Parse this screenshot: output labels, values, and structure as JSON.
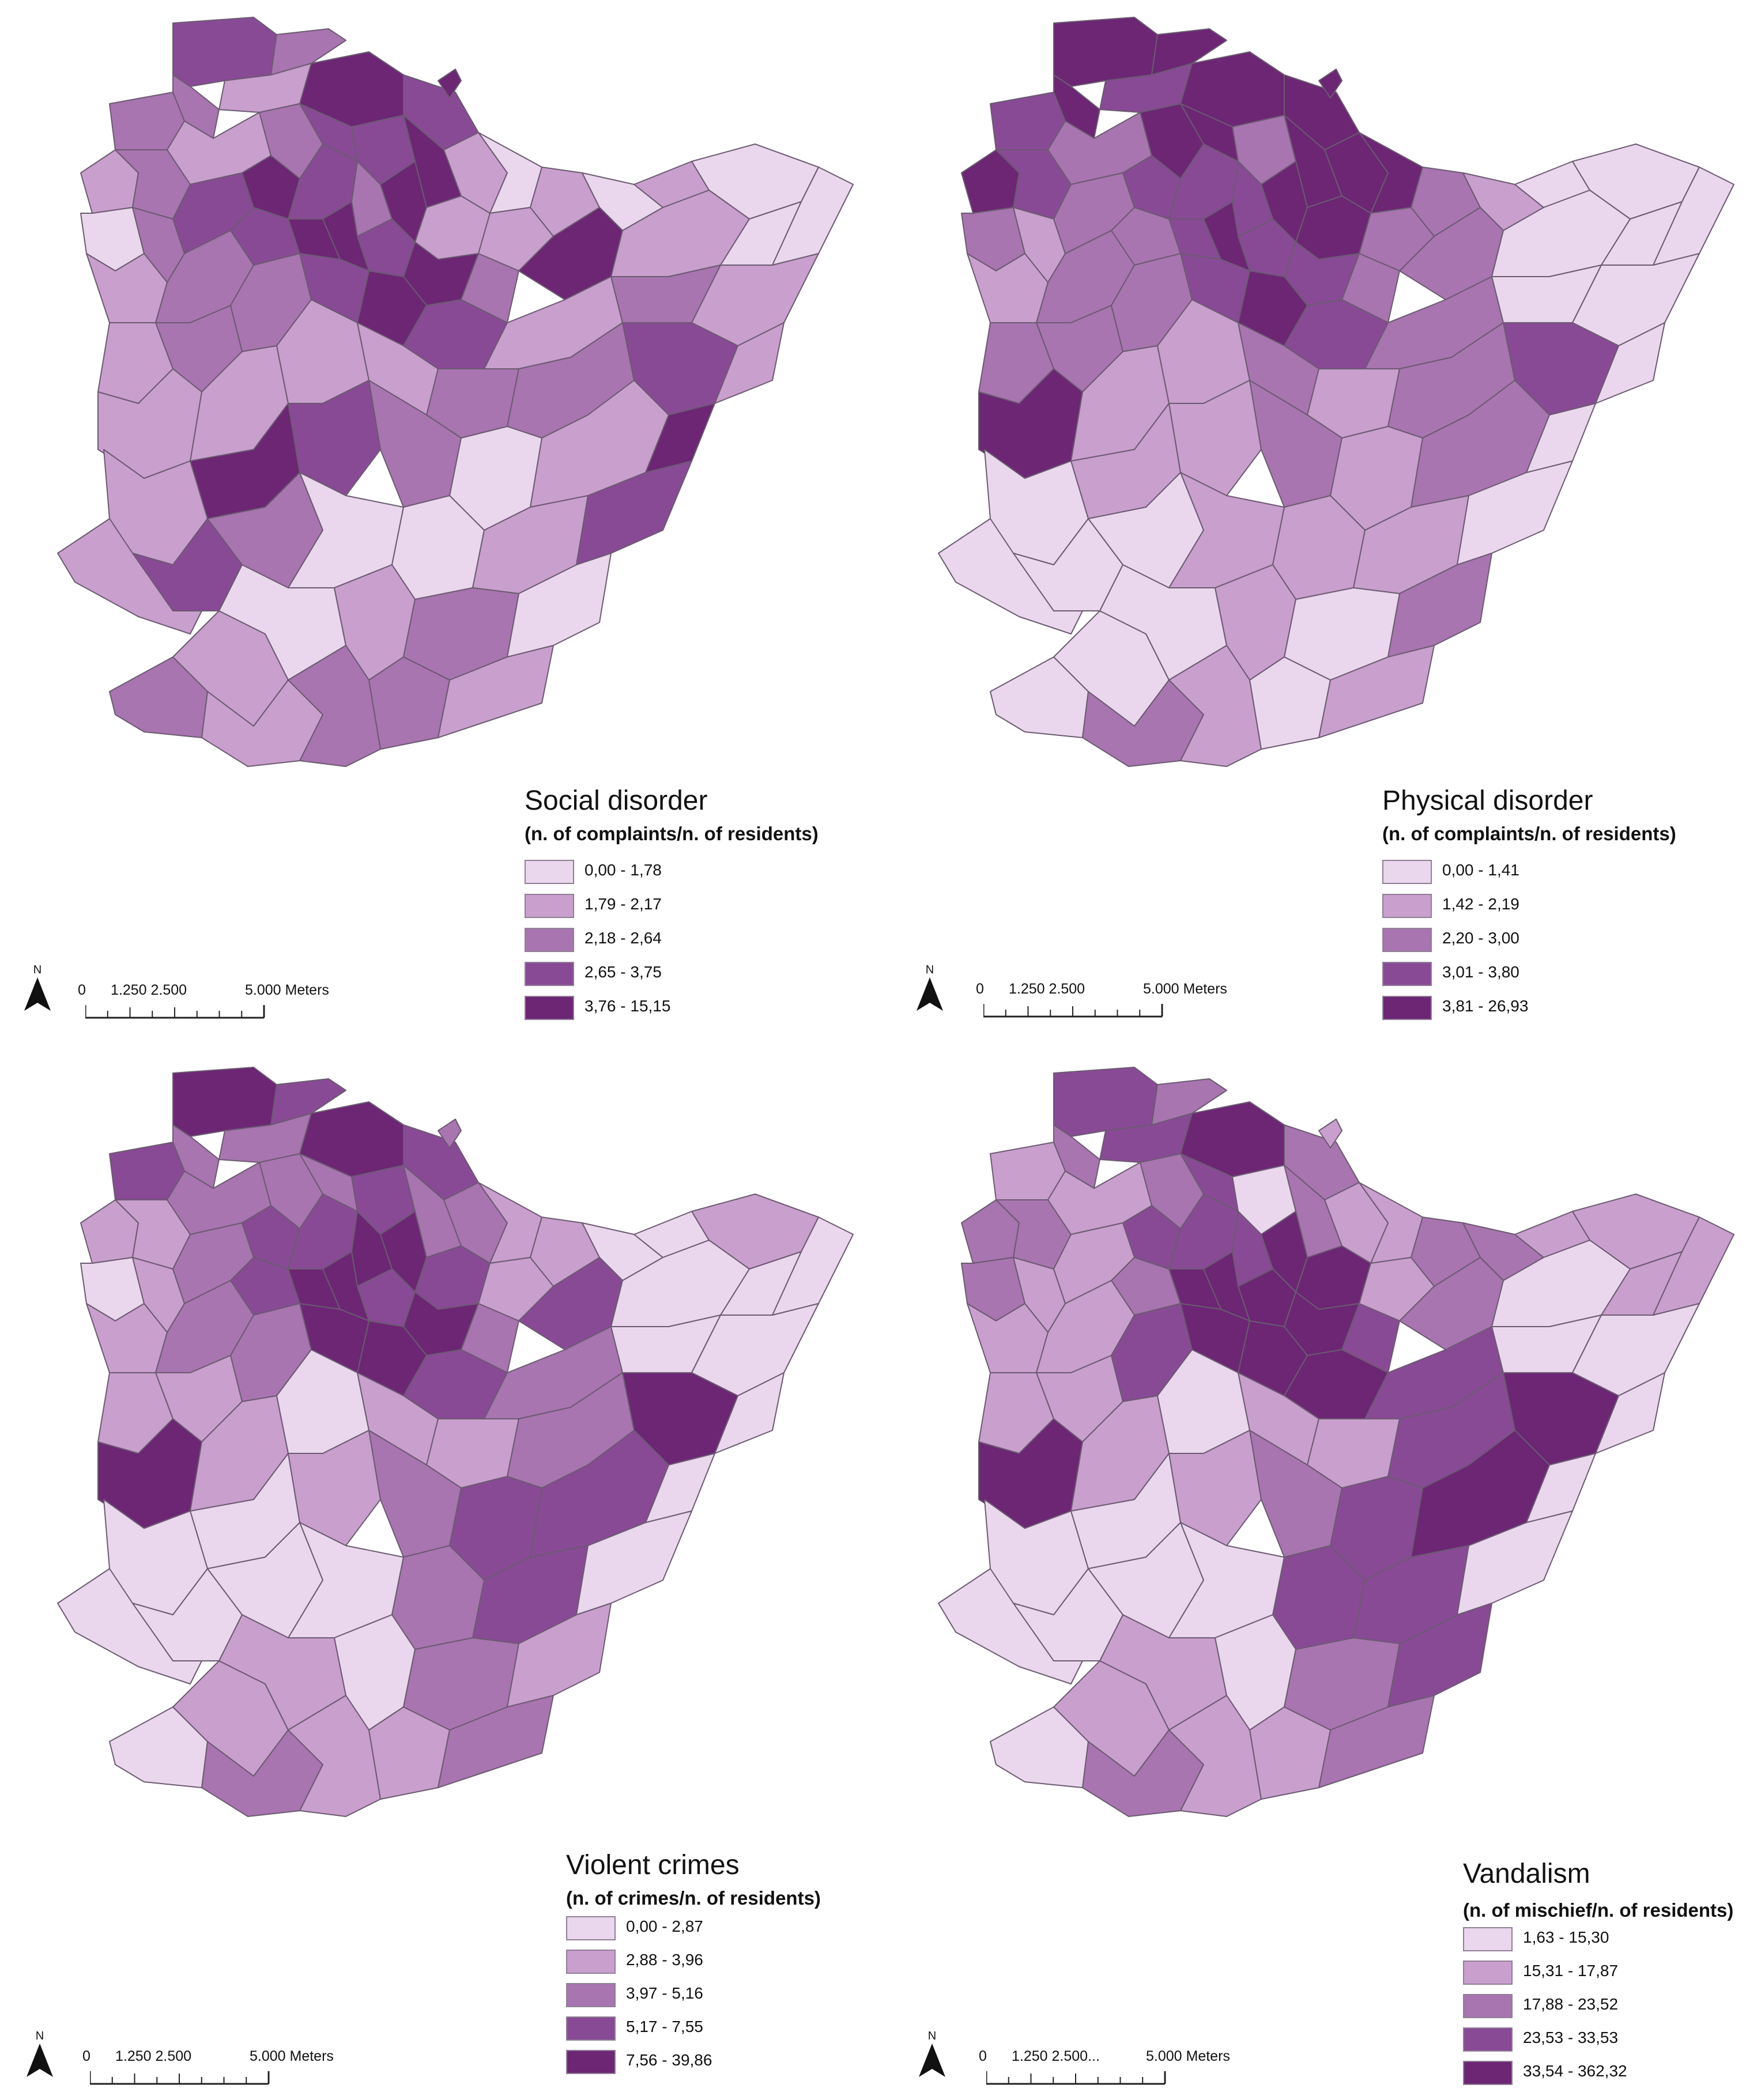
{
  "colors": [
    "#ead7ee",
    "#c99fce",
    "#a875b0",
    "#884a95",
    "#6c2674"
  ],
  "border_color": "#6b5a70",
  "maps": [
    {
      "title": "Social disorder",
      "subtitle": "(n. of complaints/n. of residents)",
      "classes": [
        "0,00 - 1,78",
        "1,79 - 2,17",
        "2,18 - 2,64",
        "2,65 - 3,75",
        "3,76 - 15,15"
      ],
      "scalebar": {
        "labels": [
          "0",
          "1.250 2.500",
          "5.000 Meters"
        ]
      },
      "north_label": "N"
    },
    {
      "title": "Physical disorder",
      "subtitle": "(n. of complaints/n. of residents)",
      "classes": [
        "0,00 - 1,41",
        "1,42 - 2,19",
        "2,20 - 3,00",
        "3,01 - 3,80",
        "3,81 - 26,93"
      ],
      "scalebar": {
        "labels": [
          "0",
          "1.250 2.500",
          "5.000 Meters"
        ]
      },
      "north_label": "N"
    },
    {
      "title": "Violent crimes",
      "subtitle": "(n. of crimes/n. of residents)",
      "classes": [
        "0,00 - 2,87",
        "2,88 - 3,96",
        "3,97 - 5,16",
        "5,17 - 7,55",
        "7,56 - 39,86"
      ],
      "scalebar": {
        "labels": [
          "0",
          "1.250 2.500",
          "5.000 Meters"
        ]
      },
      "north_label": "N"
    },
    {
      "title": "Vandalism",
      "subtitle": "(n. of mischief/n. of residents)",
      "classes": [
        "1,63 - 15,30",
        "15,31 - 17,87",
        "17,88 - 23,52",
        "23,53 - 33,53",
        "33,54 - 362,32"
      ],
      "scalebar": {
        "labels": [
          "0",
          "1.250 2.500...",
          "5.000 Meters"
        ]
      },
      "north_label": "N"
    }
  ]
}
